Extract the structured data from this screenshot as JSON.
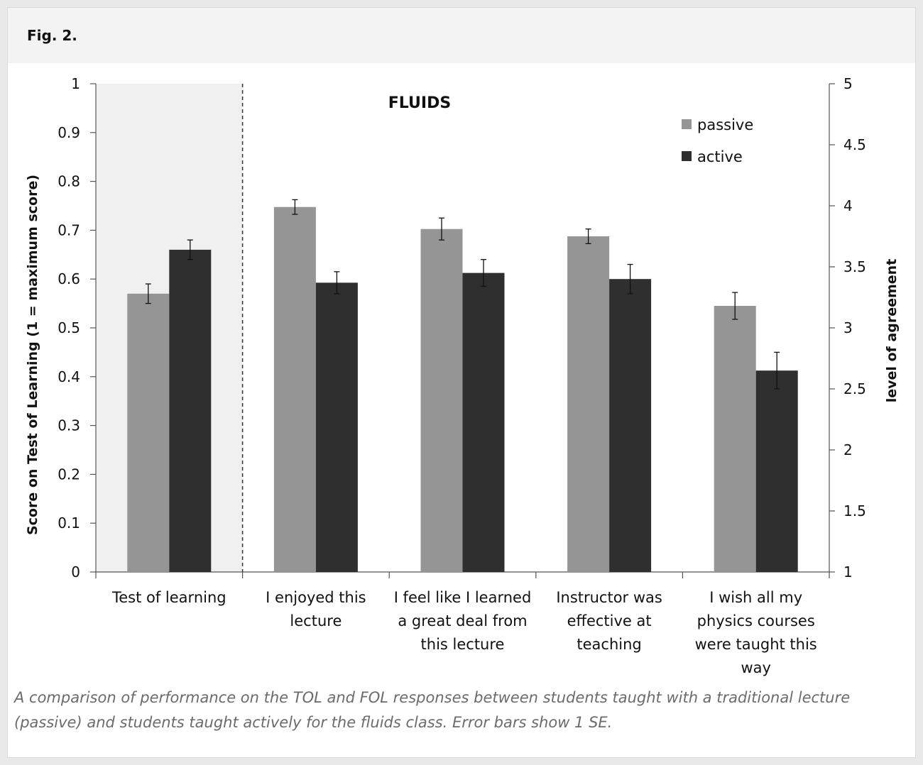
{
  "figure": {
    "label": "Fig. 2.",
    "caption": "A comparison of performance on the TOL and FOL responses between students taught with a traditional lecture (passive) and students taught actively for the fluids class. Error bars show 1 SE."
  },
  "chart_data": {
    "type": "bar",
    "title": "FLUIDS",
    "categories": [
      [
        "Test of learning"
      ],
      [
        "I enjoyed this",
        "lecture"
      ],
      [
        "I feel like I learned",
        "a great deal from",
        "this lecture"
      ],
      [
        "Instructor was",
        "effective at",
        "teaching"
      ],
      [
        "I wish all my",
        "physics courses",
        "were taught this",
        "way"
      ]
    ],
    "series": [
      {
        "name": "passive",
        "color": "#959595",
        "values": [
          0.57,
          3.99,
          3.81,
          3.75,
          3.18
        ],
        "errors": [
          0.02,
          0.06,
          0.09,
          0.06,
          0.11
        ]
      },
      {
        "name": "active",
        "color": "#2f2f2f",
        "values": [
          0.66,
          3.37,
          3.45,
          3.4,
          2.65
        ],
        "errors": [
          0.02,
          0.09,
          0.11,
          0.12,
          0.15
        ]
      }
    ],
    "axis_assignment": [
      "left",
      "right",
      "right",
      "right",
      "right"
    ],
    "y_left": {
      "label": "Score on Test of Learning   (1 = maximum score)",
      "lim": [
        0,
        1
      ],
      "ticks": [
        "0",
        "0.1",
        "0.2",
        "0.3",
        "0.4",
        "0.5",
        "0.6",
        "0.7",
        "0.8",
        "0.9",
        "1"
      ]
    },
    "y_right": {
      "label": "level of agreement",
      "lim": [
        1,
        5
      ],
      "ticks": [
        "1",
        "1.5",
        "2",
        "2.5",
        "3",
        "3.5",
        "4",
        "4.5",
        "5"
      ]
    },
    "legend_position": "top-right",
    "shaded_region": {
      "category_index": 0,
      "color": "#f0f0f0"
    },
    "grid": false
  }
}
